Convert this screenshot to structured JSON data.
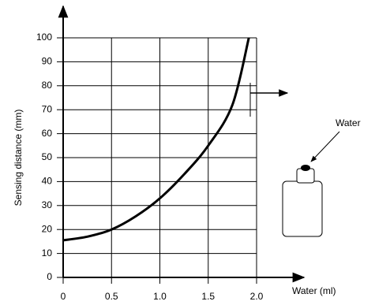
{
  "chart_data": {
    "type": "line",
    "x_label": "Water (ml)",
    "y_label": "Sensing distance (mm)",
    "annotation": "Water",
    "x": [
      0,
      0.25,
      0.5,
      0.75,
      1.0,
      1.25,
      1.5,
      1.75,
      1.92
    ],
    "values": [
      15.5,
      17,
      20,
      25.5,
      33,
      43,
      55,
      72,
      100
    ],
    "color": "#000000",
    "xlim": [
      0,
      2.0
    ],
    "ylim": [
      0,
      100
    ],
    "xticks": [
      0,
      0.5,
      {
        "value": 1.0,
        "label": "1.0"
      },
      1.5,
      {
        "value": 2.0,
        "label": "2.0"
      }
    ],
    "yticks": [
      0,
      10,
      20,
      30,
      40,
      50,
      60,
      70,
      80,
      90,
      100
    ],
    "grid": true
  }
}
